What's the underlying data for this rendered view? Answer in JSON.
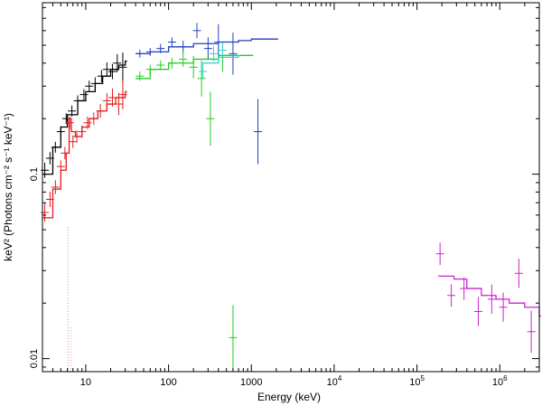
{
  "chart_data": {
    "type": "scatter",
    "title": "",
    "xlabel": "Energy (keV)",
    "ylabel": "keV² (Photons cm⁻² s⁻¹ keV⁻¹)",
    "xscale": "log",
    "yscale": "log",
    "xlim": [
      3,
      3000000
    ],
    "ylim": [
      0.0085,
      0.85
    ],
    "grid": false,
    "legend": "none",
    "x_ticks": [
      {
        "value": 10,
        "label": "10"
      },
      {
        "value": 100,
        "label": "100"
      },
      {
        "value": 1000,
        "label": "1000"
      },
      {
        "value": 10000,
        "label": "10",
        "exp": "4"
      },
      {
        "value": 100000,
        "label": "10",
        "exp": "5"
      },
      {
        "value": 1000000,
        "label": "10",
        "exp": "6"
      }
    ],
    "y_ticks": [
      {
        "value": 0.01,
        "label": "0.01"
      },
      {
        "value": 0.1,
        "label": "0.1"
      }
    ],
    "series": [
      {
        "color": "#000000",
        "model": [
          [
            3.0,
            0.1
          ],
          [
            4.0,
            0.14
          ],
          [
            5.0,
            0.18
          ],
          [
            6.0,
            0.21
          ],
          [
            8.0,
            0.25
          ],
          [
            10.0,
            0.28
          ],
          [
            13.0,
            0.31
          ],
          [
            16.0,
            0.34
          ],
          [
            20.0,
            0.37
          ],
          [
            25.0,
            0.39
          ],
          [
            30.0,
            0.41
          ]
        ],
        "points": [
          {
            "x": 3.2,
            "y": 0.105,
            "dy": 0.1
          },
          {
            "x": 3.7,
            "y": 0.122,
            "dy": 0.08
          },
          {
            "x": 4.3,
            "y": 0.14,
            "dy": 0.07
          },
          {
            "x": 5.0,
            "y": 0.17,
            "dy": 0.07
          },
          {
            "x": 5.8,
            "y": 0.2,
            "dy": 0.07
          },
          {
            "x": 6.8,
            "y": 0.22,
            "dy": 0.07
          },
          {
            "x": 8.0,
            "y": 0.25,
            "dy": 0.07
          },
          {
            "x": 9.5,
            "y": 0.27,
            "dy": 0.07
          },
          {
            "x": 11.0,
            "y": 0.3,
            "dy": 0.07
          },
          {
            "x": 13.0,
            "y": 0.31,
            "dy": 0.08
          },
          {
            "x": 15.5,
            "y": 0.34,
            "dy": 0.08
          },
          {
            "x": 18.0,
            "y": 0.37,
            "dy": 0.09
          },
          {
            "x": 21.0,
            "y": 0.36,
            "dy": 0.1
          },
          {
            "x": 24.0,
            "y": 0.4,
            "dy": 0.12
          },
          {
            "x": 28.0,
            "y": 0.38,
            "dy": 0.2
          }
        ]
      },
      {
        "color": "#e41a1c",
        "model": [
          [
            3.0,
            0.058
          ],
          [
            4.0,
            0.083
          ],
          [
            5.0,
            0.105
          ],
          [
            5.8,
            0.13
          ],
          [
            6.3,
            0.2
          ],
          [
            6.7,
            0.17
          ],
          [
            7.5,
            0.16
          ],
          [
            9.0,
            0.18
          ],
          [
            11.0,
            0.2
          ],
          [
            14.0,
            0.22
          ],
          [
            18.0,
            0.24
          ],
          [
            23.0,
            0.26
          ],
          [
            30.0,
            0.28
          ]
        ],
        "points": [
          {
            "x": 3.2,
            "y": 0.062,
            "dy": 0.12
          },
          {
            "x": 3.7,
            "y": 0.073,
            "dy": 0.1
          },
          {
            "x": 4.3,
            "y": 0.085,
            "dy": 0.09
          },
          {
            "x": 5.0,
            "y": 0.11,
            "dy": 0.08
          },
          {
            "x": 5.6,
            "y": 0.13,
            "dy": 0.08
          },
          {
            "x": 6.4,
            "y": 0.19,
            "dy": 0.08
          },
          {
            "x": 7.0,
            "y": 0.15,
            "dy": 0.08
          },
          {
            "x": 7.8,
            "y": 0.16,
            "dy": 0.08
          },
          {
            "x": 9.0,
            "y": 0.17,
            "dy": 0.08
          },
          {
            "x": 10.5,
            "y": 0.19,
            "dy": 0.08
          },
          {
            "x": 12.5,
            "y": 0.2,
            "dy": 0.08
          },
          {
            "x": 15.0,
            "y": 0.22,
            "dy": 0.09
          },
          {
            "x": 18.0,
            "y": 0.25,
            "dy": 0.1
          },
          {
            "x": 21.0,
            "y": 0.26,
            "dy": 0.12
          },
          {
            "x": 25.0,
            "y": 0.24,
            "dy": 0.15
          },
          {
            "x": 28.0,
            "y": 0.27,
            "dy": 0.2
          }
        ]
      },
      {
        "color": "#1f3fbf",
        "model": [
          [
            40,
            0.45
          ],
          [
            60,
            0.46
          ],
          [
            100,
            0.49
          ],
          [
            200,
            0.51
          ],
          [
            400,
            0.52
          ],
          [
            700,
            0.53
          ],
          [
            1000,
            0.54
          ],
          [
            2000,
            0.54
          ]
        ],
        "points": [
          {
            "x": 45,
            "y": 0.45,
            "dy": 0.05
          },
          {
            "x": 60,
            "y": 0.46,
            "dy": 0.05
          },
          {
            "x": 80,
            "y": 0.48,
            "dy": 0.06
          },
          {
            "x": 110,
            "y": 0.52,
            "dy": 0.06
          },
          {
            "x": 150,
            "y": 0.49,
            "dy": 0.08
          },
          {
            "x": 220,
            "y": 0.6,
            "dy": 0.1
          },
          {
            "x": 300,
            "y": 0.48,
            "dy": 0.15
          },
          {
            "x": 400,
            "y": 0.52,
            "dy": 0.25
          },
          {
            "x": 600,
            "y": 0.45,
            "dy": 0.3
          },
          {
            "x": 1200,
            "y": 0.17,
            "dy": 0.5
          }
        ]
      },
      {
        "color": "#22cc22",
        "model": [
          [
            40,
            0.33
          ],
          [
            60,
            0.37
          ],
          [
            100,
            0.4
          ],
          [
            200,
            0.42
          ],
          [
            400,
            0.44
          ],
          [
            1000,
            0.44
          ]
        ],
        "points": [
          {
            "x": 45,
            "y": 0.34,
            "dy": 0.06
          },
          {
            "x": 60,
            "y": 0.37,
            "dy": 0.06
          },
          {
            "x": 80,
            "y": 0.39,
            "dy": 0.06
          },
          {
            "x": 110,
            "y": 0.4,
            "dy": 0.07
          },
          {
            "x": 150,
            "y": 0.42,
            "dy": 0.1
          },
          {
            "x": 200,
            "y": 0.38,
            "dy": 0.15
          },
          {
            "x": 250,
            "y": 0.33,
            "dy": 0.25
          },
          {
            "x": 320,
            "y": 0.2,
            "dy": 0.4
          },
          {
            "x": 450,
            "y": 0.43,
            "dy": 0.2
          },
          {
            "x": 600,
            "y": 0.013,
            "dy": 0.5
          }
        ]
      },
      {
        "color": "#2ad4d4",
        "model": [
          [
            250,
            0.4
          ],
          [
            400,
            0.43
          ],
          [
            700,
            0.44
          ]
        ],
        "points": [
          {
            "x": 260,
            "y": 0.36,
            "dy": 0.1
          },
          {
            "x": 350,
            "y": 0.45,
            "dy": 0.1
          },
          {
            "x": 450,
            "y": 0.47,
            "dy": 0.1
          }
        ]
      },
      {
        "color": "#cc22cc",
        "model": [
          [
            180000,
            0.028
          ],
          [
            280000,
            0.027
          ],
          [
            400000,
            0.024
          ],
          [
            600000,
            0.022
          ],
          [
            900000,
            0.021
          ],
          [
            1300000,
            0.02
          ],
          [
            2000000,
            0.019
          ],
          [
            3000000,
            0.017
          ]
        ],
        "points": [
          {
            "x": 190000,
            "y": 0.037,
            "dy": 0.15
          },
          {
            "x": 260000,
            "y": 0.022,
            "dy": 0.15
          },
          {
            "x": 370000,
            "y": 0.024,
            "dy": 0.15
          },
          {
            "x": 550000,
            "y": 0.018,
            "dy": 0.2
          },
          {
            "x": 800000,
            "y": 0.021,
            "dy": 0.2
          },
          {
            "x": 1100000,
            "y": 0.019,
            "dy": 0.2
          },
          {
            "x": 1700000,
            "y": 0.029,
            "dy": 0.2
          },
          {
            "x": 2400000,
            "y": 0.014,
            "dy": 0.3
          }
        ]
      }
    ],
    "dotted_lines": [
      {
        "color": "#aaaaaa",
        "x": 6.1,
        "y_from": 0.005,
        "y_to": 0.052
      },
      {
        "color": "#ff9999",
        "x": 6.6,
        "y_from": 0.005,
        "y_to": 0.015
      }
    ]
  }
}
